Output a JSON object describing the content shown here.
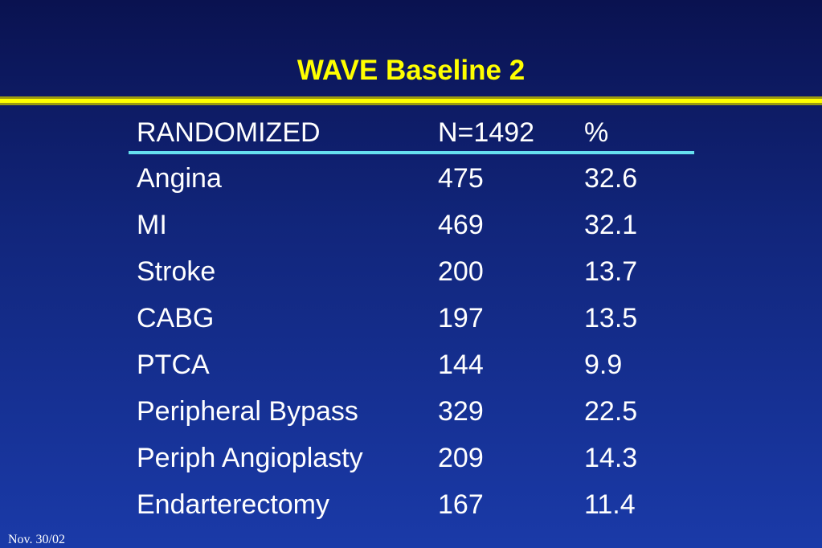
{
  "header": {
    "title": "WAVE Baseline 2"
  },
  "table": {
    "columns": [
      "RANDOMIZED",
      "N=1492",
      "%"
    ],
    "rows": [
      [
        "Angina",
        475,
        32.6
      ],
      [
        "MI",
        469,
        32.1
      ],
      [
        "Stroke",
        200,
        13.7
      ],
      [
        "CABG",
        197,
        13.5
      ],
      [
        "PTCA",
        144,
        9.9
      ],
      [
        "Peripheral Bypass",
        329,
        22.5
      ],
      [
        "Periph Angioplasty",
        209,
        14.3
      ],
      [
        "Endarterectomy",
        167,
        11.4
      ]
    ]
  },
  "footer": {
    "date": "Nov. 30/02"
  }
}
